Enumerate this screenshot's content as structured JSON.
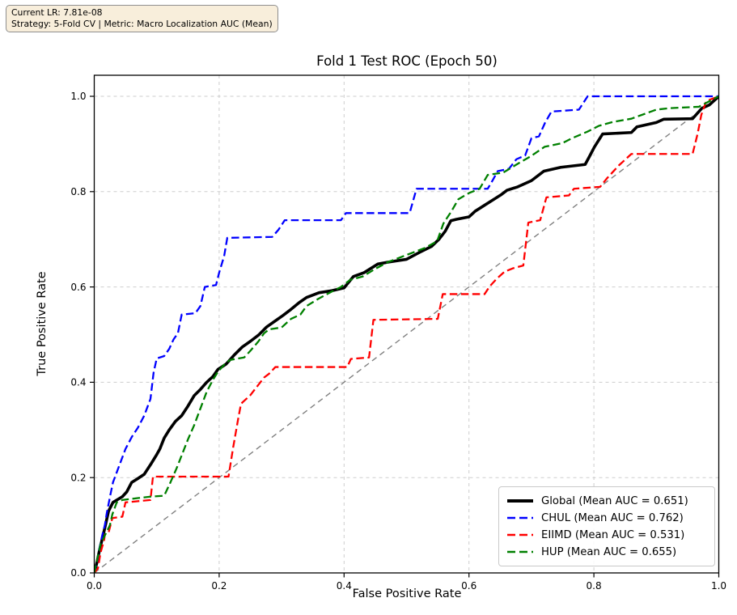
{
  "annotation": {
    "line1": "Current LR: 7.81e-08",
    "line2": "Strategy: 5-Fold CV | Metric: Macro Localization AUC (Mean)",
    "box_fill_color": "#f5deb3",
    "box_border_color": "#8f8f8f"
  },
  "chart_data": {
    "type": "line",
    "title": "Fold 1 Test ROC (Epoch 50)",
    "xlabel": "False Positive Rate",
    "ylabel": "True Positive Rate",
    "xlim": [
      0.0,
      1.0
    ],
    "ylim": [
      0.0,
      1.04
    ],
    "grid": true,
    "grid_color": "#cdcdcd",
    "legend_position": "lower right",
    "xticks": [
      0.0,
      0.2,
      0.4,
      0.6,
      0.8,
      1.0
    ],
    "yticks": [
      0.0,
      0.2,
      0.4,
      0.6,
      0.8,
      1.0
    ],
    "xtick_labels": [
      "0.0",
      "0.2",
      "0.4",
      "0.6",
      "0.8",
      "1.0"
    ],
    "ytick_labels": [
      "0.0",
      "0.2",
      "0.4",
      "0.6",
      "0.8",
      "1.0"
    ],
    "reference_line": {
      "name": "chance-diagonal",
      "color": "#808080",
      "style": "dashed",
      "points": [
        [
          0,
          0
        ],
        [
          1,
          1
        ]
      ]
    },
    "series": [
      {
        "name": "Global",
        "label": "Global (Mean AUC = 0.651)",
        "mean_auc": 0.651,
        "color": "#000000",
        "style": "solid",
        "width": 3.6,
        "points": [
          [
            0,
            0
          ],
          [
            0.004,
            0.02
          ],
          [
            0.008,
            0.045
          ],
          [
            0.016,
            0.089
          ],
          [
            0.023,
            0.13
          ],
          [
            0.03,
            0.148
          ],
          [
            0.045,
            0.16
          ],
          [
            0.052,
            0.17
          ],
          [
            0.06,
            0.19
          ],
          [
            0.071,
            0.199
          ],
          [
            0.08,
            0.207
          ],
          [
            0.091,
            0.229
          ],
          [
            0.099,
            0.246
          ],
          [
            0.105,
            0.26
          ],
          [
            0.112,
            0.283
          ],
          [
            0.12,
            0.3
          ],
          [
            0.13,
            0.318
          ],
          [
            0.14,
            0.33
          ],
          [
            0.15,
            0.35
          ],
          [
            0.16,
            0.372
          ],
          [
            0.17,
            0.385
          ],
          [
            0.18,
            0.4
          ],
          [
            0.19,
            0.412
          ],
          [
            0.198,
            0.427
          ],
          [
            0.211,
            0.438
          ],
          [
            0.224,
            0.457
          ],
          [
            0.237,
            0.474
          ],
          [
            0.25,
            0.486
          ],
          [
            0.263,
            0.499
          ],
          [
            0.276,
            0.516
          ],
          [
            0.289,
            0.528
          ],
          [
            0.302,
            0.54
          ],
          [
            0.315,
            0.553
          ],
          [
            0.328,
            0.567
          ],
          [
            0.34,
            0.578
          ],
          [
            0.36,
            0.588
          ],
          [
            0.38,
            0.592
          ],
          [
            0.4,
            0.598
          ],
          [
            0.415,
            0.622
          ],
          [
            0.432,
            0.63
          ],
          [
            0.454,
            0.648
          ],
          [
            0.47,
            0.652
          ],
          [
            0.5,
            0.658
          ],
          [
            0.52,
            0.672
          ],
          [
            0.54,
            0.685
          ],
          [
            0.552,
            0.7
          ],
          [
            0.562,
            0.717
          ],
          [
            0.571,
            0.739
          ],
          [
            0.58,
            0.742
          ],
          [
            0.6,
            0.747
          ],
          [
            0.61,
            0.759
          ],
          [
            0.622,
            0.769
          ],
          [
            0.64,
            0.784
          ],
          [
            0.652,
            0.794
          ],
          [
            0.661,
            0.803
          ],
          [
            0.678,
            0.81
          ],
          [
            0.7,
            0.823
          ],
          [
            0.72,
            0.843
          ],
          [
            0.747,
            0.851
          ],
          [
            0.786,
            0.857
          ],
          [
            0.793,
            0.874
          ],
          [
            0.801,
            0.894
          ],
          [
            0.814,
            0.921
          ],
          [
            0.86,
            0.924
          ],
          [
            0.869,
            0.936
          ],
          [
            0.9,
            0.945
          ],
          [
            0.912,
            0.952
          ],
          [
            0.958,
            0.953
          ],
          [
            0.973,
            0.975
          ],
          [
            0.985,
            0.982
          ],
          [
            1,
            1
          ]
        ]
      },
      {
        "name": "CHUL",
        "label": "CHUL (Mean AUC = 0.762)",
        "mean_auc": 0.762,
        "color": "#0000ff",
        "style": "dashed",
        "width": 2.3,
        "points": [
          [
            0,
            0
          ],
          [
            0.004,
            0.02
          ],
          [
            0.008,
            0.05
          ],
          [
            0.013,
            0.08
          ],
          [
            0.017,
            0.1
          ],
          [
            0.02,
            0.125
          ],
          [
            0.026,
            0.165
          ],
          [
            0.03,
            0.19
          ],
          [
            0.04,
            0.225
          ],
          [
            0.05,
            0.26
          ],
          [
            0.06,
            0.285
          ],
          [
            0.07,
            0.305
          ],
          [
            0.08,
            0.33
          ],
          [
            0.09,
            0.365
          ],
          [
            0.095,
            0.42
          ],
          [
            0.1,
            0.45
          ],
          [
            0.112,
            0.455
          ],
          [
            0.12,
            0.47
          ],
          [
            0.127,
            0.49
          ],
          [
            0.134,
            0.503
          ],
          [
            0.14,
            0.542
          ],
          [
            0.162,
            0.545
          ],
          [
            0.17,
            0.56
          ],
          [
            0.177,
            0.6
          ],
          [
            0.195,
            0.604
          ],
          [
            0.2,
            0.63
          ],
          [
            0.208,
            0.665
          ],
          [
            0.213,
            0.703
          ],
          [
            0.285,
            0.705
          ],
          [
            0.295,
            0.72
          ],
          [
            0.305,
            0.74
          ],
          [
            0.395,
            0.74
          ],
          [
            0.403,
            0.755
          ],
          [
            0.505,
            0.755
          ],
          [
            0.516,
            0.806
          ],
          [
            0.63,
            0.806
          ],
          [
            0.638,
            0.824
          ],
          [
            0.646,
            0.843
          ],
          [
            0.664,
            0.848
          ],
          [
            0.676,
            0.868
          ],
          [
            0.69,
            0.876
          ],
          [
            0.7,
            0.912
          ],
          [
            0.712,
            0.916
          ],
          [
            0.722,
            0.945
          ],
          [
            0.732,
            0.968
          ],
          [
            0.776,
            0.972
          ],
          [
            0.79,
            1
          ],
          [
            1,
            1
          ]
        ]
      },
      {
        "name": "EIIMD",
        "label": "EIIMD (Mean AUC = 0.531)",
        "mean_auc": 0.531,
        "color": "#ff0000",
        "style": "dashed",
        "width": 2.3,
        "points": [
          [
            0,
            0
          ],
          [
            0.006,
            0.01
          ],
          [
            0.01,
            0.042
          ],
          [
            0.016,
            0.07
          ],
          [
            0.017,
            0.081
          ],
          [
            0.023,
            0.085
          ],
          [
            0.029,
            0.115
          ],
          [
            0.045,
            0.118
          ],
          [
            0.05,
            0.148
          ],
          [
            0.09,
            0.153
          ],
          [
            0.094,
            0.202
          ],
          [
            0.215,
            0.202
          ],
          [
            0.222,
            0.26
          ],
          [
            0.23,
            0.32
          ],
          [
            0.235,
            0.355
          ],
          [
            0.25,
            0.373
          ],
          [
            0.26,
            0.39
          ],
          [
            0.272,
            0.41
          ],
          [
            0.28,
            0.418
          ],
          [
            0.29,
            0.432
          ],
          [
            0.405,
            0.432
          ],
          [
            0.411,
            0.449
          ],
          [
            0.44,
            0.452
          ],
          [
            0.447,
            0.531
          ],
          [
            0.55,
            0.533
          ],
          [
            0.558,
            0.585
          ],
          [
            0.625,
            0.585
          ],
          [
            0.633,
            0.601
          ],
          [
            0.645,
            0.618
          ],
          [
            0.657,
            0.632
          ],
          [
            0.67,
            0.639
          ],
          [
            0.687,
            0.645
          ],
          [
            0.695,
            0.735
          ],
          [
            0.714,
            0.74
          ],
          [
            0.724,
            0.788
          ],
          [
            0.76,
            0.792
          ],
          [
            0.768,
            0.806
          ],
          [
            0.81,
            0.81
          ],
          [
            0.821,
            0.828
          ],
          [
            0.84,
            0.855
          ],
          [
            0.86,
            0.879
          ],
          [
            0.958,
            0.879
          ],
          [
            0.966,
            0.921
          ],
          [
            0.972,
            0.961
          ],
          [
            0.98,
            0.99
          ],
          [
            1,
            1
          ]
        ]
      },
      {
        "name": "HUP",
        "label": "HUP (Mean AUC = 0.655)",
        "mean_auc": 0.655,
        "color": "#008000",
        "style": "dashed",
        "width": 2.3,
        "points": [
          [
            0,
            0
          ],
          [
            0.005,
            0.03
          ],
          [
            0.01,
            0.06
          ],
          [
            0.019,
            0.084
          ],
          [
            0.025,
            0.1
          ],
          [
            0.029,
            0.123
          ],
          [
            0.036,
            0.148
          ],
          [
            0.045,
            0.153
          ],
          [
            0.07,
            0.157
          ],
          [
            0.09,
            0.16
          ],
          [
            0.112,
            0.162
          ],
          [
            0.122,
            0.19
          ],
          [
            0.132,
            0.22
          ],
          [
            0.141,
            0.25
          ],
          [
            0.15,
            0.28
          ],
          [
            0.16,
            0.31
          ],
          [
            0.17,
            0.345
          ],
          [
            0.18,
            0.38
          ],
          [
            0.19,
            0.405
          ],
          [
            0.198,
            0.422
          ],
          [
            0.21,
            0.44
          ],
          [
            0.218,
            0.447
          ],
          [
            0.24,
            0.452
          ],
          [
            0.25,
            0.466
          ],
          [
            0.263,
            0.486
          ],
          [
            0.272,
            0.503
          ],
          [
            0.28,
            0.511
          ],
          [
            0.3,
            0.515
          ],
          [
            0.315,
            0.533
          ],
          [
            0.33,
            0.542
          ],
          [
            0.34,
            0.56
          ],
          [
            0.36,
            0.576
          ],
          [
            0.38,
            0.59
          ],
          [
            0.395,
            0.6
          ],
          [
            0.41,
            0.615
          ],
          [
            0.43,
            0.622
          ],
          [
            0.45,
            0.638
          ],
          [
            0.47,
            0.652
          ],
          [
            0.49,
            0.662
          ],
          [
            0.51,
            0.672
          ],
          [
            0.53,
            0.682
          ],
          [
            0.549,
            0.696
          ],
          [
            0.559,
            0.733
          ],
          [
            0.572,
            0.759
          ],
          [
            0.583,
            0.784
          ],
          [
            0.6,
            0.797
          ],
          [
            0.617,
            0.806
          ],
          [
            0.63,
            0.835
          ],
          [
            0.655,
            0.84
          ],
          [
            0.68,
            0.86
          ],
          [
            0.7,
            0.875
          ],
          [
            0.721,
            0.894
          ],
          [
            0.75,
            0.902
          ],
          [
            0.765,
            0.912
          ],
          [
            0.79,
            0.926
          ],
          [
            0.808,
            0.938
          ],
          [
            0.83,
            0.946
          ],
          [
            0.86,
            0.953
          ],
          [
            0.9,
            0.972
          ],
          [
            0.92,
            0.975
          ],
          [
            0.968,
            0.978
          ],
          [
            1,
            1
          ]
        ]
      }
    ]
  }
}
